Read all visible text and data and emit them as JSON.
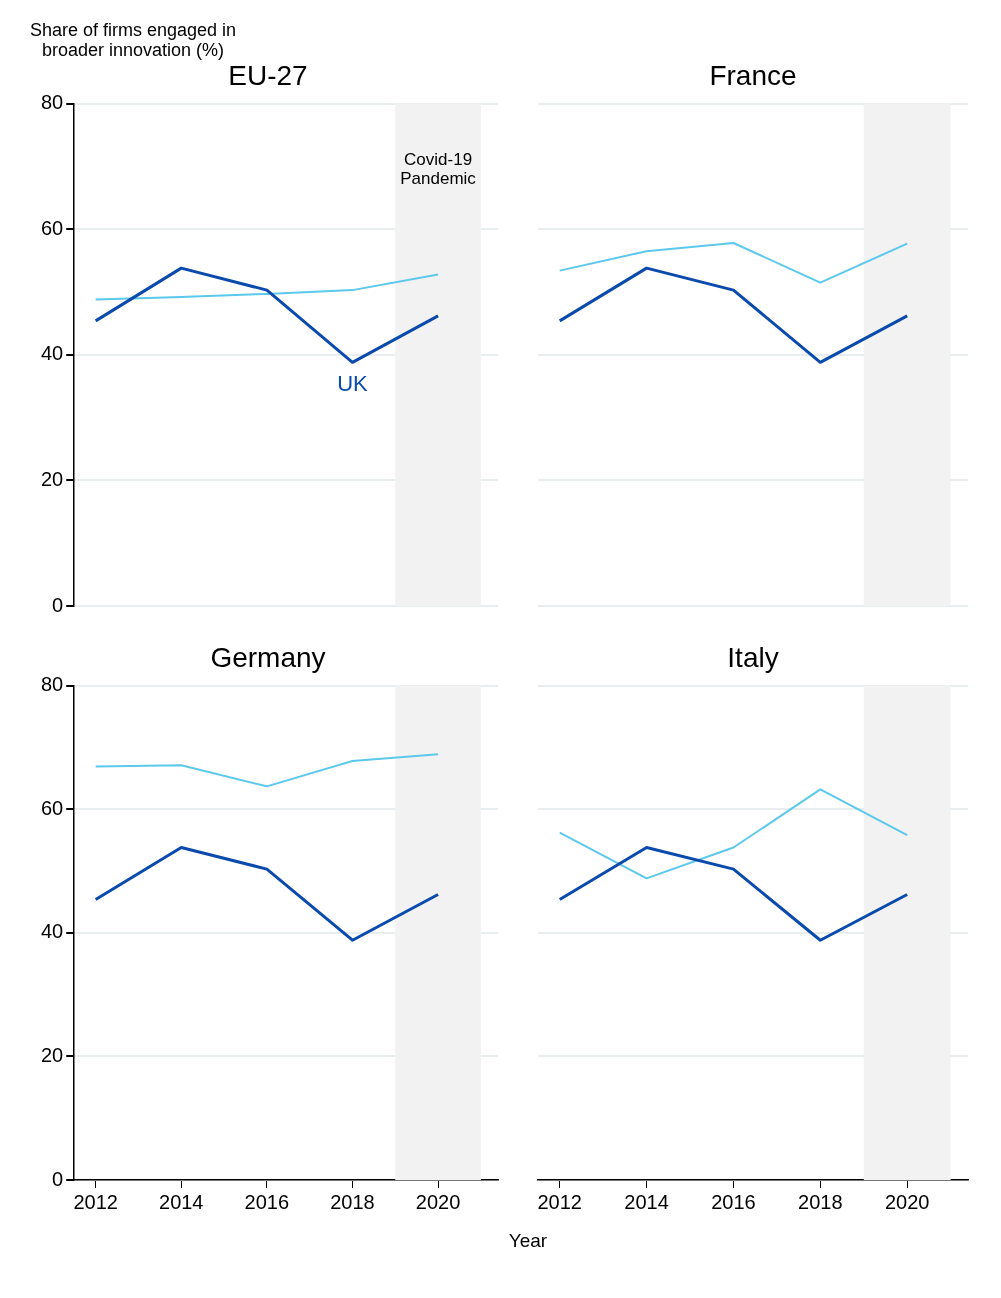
{
  "chart_data": [
    {
      "type": "line",
      "title": "EU-27",
      "ylabel": "Share of firms engaged in broader innovation (%)",
      "x": [
        2012,
        2014,
        2016,
        2018,
        2020
      ],
      "xlim": [
        2011.5,
        2021.4
      ],
      "xticks": [
        2012,
        2014,
        2016,
        2018,
        2020
      ],
      "ylim": [
        0,
        80
      ],
      "yticks": [
        0,
        20,
        40,
        60,
        80
      ],
      "grid": "y",
      "tick_labels": "y",
      "bands": [
        {
          "axis": "x",
          "from": 2019,
          "to": 2021,
          "label": "Covid-19 Pandemic",
          "color": "#f2f2f2"
        }
      ],
      "series": [
        {
          "name": "UK",
          "color": "#0a4aad",
          "values": [
            45.4,
            53.8,
            50.3,
            38.8,
            46.2
          ]
        },
        {
          "color": "#5bc8ec",
          "values": [
            48.8,
            49.2,
            49.7,
            50.3,
            52.8
          ]
        }
      ]
    },
    {
      "type": "line",
      "title": "France",
      "x": [
        2012,
        2014,
        2016,
        2018,
        2020
      ],
      "xlim": [
        2011.5,
        2021.4
      ],
      "xticks": [
        2012,
        2014,
        2016,
        2018,
        2020
      ],
      "ylim": [
        0,
        80
      ],
      "yticks": [
        0,
        20,
        40,
        60,
        80
      ],
      "grid": "y",
      "tick_labels": false,
      "bands": [
        {
          "axis": "x",
          "from": 2019,
          "to": 2021,
          "color": "#f2f2f2"
        }
      ],
      "series": [
        {
          "color": "#0a4aad",
          "values": [
            45.4,
            53.8,
            50.3,
            38.8,
            46.2
          ]
        },
        {
          "color": "#5bc8ec",
          "values": [
            53.4,
            56.5,
            57.8,
            51.5,
            57.7
          ]
        }
      ]
    },
    {
      "type": "line",
      "title": "Germany",
      "x": [
        2012,
        2014,
        2016,
        2018,
        2020
      ],
      "xlim": [
        2011.5,
        2021.4
      ],
      "xticks": [
        2012,
        2014,
        2016,
        2018,
        2020
      ],
      "ylim": [
        0,
        80
      ],
      "yticks": [
        0,
        20,
        40,
        60,
        80
      ],
      "grid": "y",
      "bands": [
        {
          "axis": "x",
          "from": 2019,
          "to": 2021,
          "color": "#f2f2f2"
        }
      ],
      "series": [
        {
          "color": "#0a4aad",
          "values": [
            45.4,
            53.8,
            50.3,
            38.8,
            46.2
          ]
        },
        {
          "color": "#5bc8ec",
          "values": [
            66.9,
            67.1,
            63.7,
            67.8,
            68.9
          ]
        }
      ]
    },
    {
      "type": "line",
      "title": "Italy",
      "xlabel": "Year",
      "x": [
        2012,
        2014,
        2016,
        2018,
        2020
      ],
      "xlim": [
        2011.5,
        2021.4
      ],
      "xticks": [
        2012,
        2014,
        2016,
        2018,
        2020
      ],
      "ylim": [
        0,
        80
      ],
      "yticks": [
        0,
        20,
        40,
        60,
        80
      ],
      "grid": "y",
      "tick_labels": "x",
      "bands": [
        {
          "axis": "x",
          "from": 2019,
          "to": 2021,
          "color": "#f2f2f2"
        }
      ],
      "series": [
        {
          "color": "#0a4aad",
          "values": [
            45.4,
            53.8,
            50.3,
            38.8,
            46.2
          ]
        },
        {
          "color": "#5bc8ec",
          "values": [
            56.2,
            48.8,
            53.8,
            63.2,
            55.8
          ]
        }
      ]
    }
  ]
}
